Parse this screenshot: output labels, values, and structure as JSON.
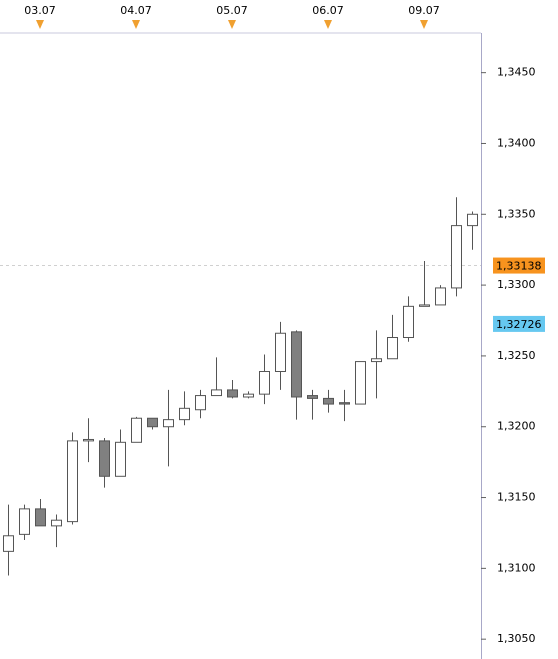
{
  "chart_data": {
    "type": "candlestick",
    "categories": [
      null,
      null,
      "03.07",
      null,
      null,
      null,
      null,
      null,
      "04.07",
      null,
      null,
      null,
      null,
      null,
      "05.07",
      null,
      null,
      null,
      null,
      null,
      "06.07",
      null,
      null,
      null,
      null,
      null,
      "09.07",
      null,
      null,
      null
    ],
    "series": [
      {
        "up_color": "#ffffff",
        "down_color": "#808080",
        "color": "#555555",
        "open": [
          1.3112,
          1.3124,
          1.3142,
          1.313,
          1.3133,
          1.319,
          1.319,
          1.3165,
          1.3189,
          1.3206,
          1.32,
          1.3205,
          1.3212,
          1.3222,
          1.3226,
          1.3221,
          1.3223,
          1.3239,
          1.3267,
          1.3222,
          1.322,
          1.3217,
          1.3216,
          1.3246,
          1.3248,
          1.3263,
          1.3285,
          1.3286,
          1.3298,
          1.3342
        ],
        "high": [
          1.3145,
          1.3145,
          1.3149,
          1.3138,
          1.3196,
          1.3206,
          1.3192,
          1.3198,
          1.3207,
          1.3206,
          1.3226,
          1.3225,
          1.3226,
          1.3249,
          1.3233,
          1.3225,
          1.3251,
          1.3274,
          1.3268,
          1.3226,
          1.3226,
          1.3226,
          1.3246,
          1.3268,
          1.3279,
          1.3292,
          1.3317,
          1.33,
          1.3362,
          1.3352
        ],
        "low": [
          1.3095,
          1.312,
          1.313,
          1.3115,
          1.3131,
          1.3175,
          1.3157,
          1.3165,
          1.3189,
          1.3198,
          1.3172,
          1.3201,
          1.3206,
          1.3222,
          1.322,
          1.322,
          1.3216,
          1.3226,
          1.3205,
          1.3205,
          1.321,
          1.3204,
          1.3216,
          1.322,
          1.3248,
          1.326,
          1.3285,
          1.3286,
          1.3292,
          1.3325
        ],
        "close": [
          1.3123,
          1.3142,
          1.313,
          1.3134,
          1.319,
          1.3191,
          1.3165,
          1.3189,
          1.3206,
          1.32,
          1.3205,
          1.3213,
          1.3222,
          1.3226,
          1.3221,
          1.3223,
          1.3239,
          1.3266,
          1.3221,
          1.322,
          1.3216,
          1.3216,
          1.3246,
          1.3248,
          1.3263,
          1.3285,
          1.3286,
          1.3298,
          1.3342,
          1.335
        ]
      }
    ],
    "ylim": [
      1.3036,
      1.3478
    ],
    "yticks": [
      {
        "value": 1.305,
        "label": "1,3050"
      },
      {
        "value": 1.31,
        "label": "1,3100"
      },
      {
        "value": 1.315,
        "label": "1,3150"
      },
      {
        "value": 1.32,
        "label": "1,3200"
      },
      {
        "value": 1.325,
        "label": "1,3250"
      },
      {
        "value": 1.33,
        "label": "1,3300"
      },
      {
        "value": 1.335,
        "label": "1,3350"
      },
      {
        "value": 1.34,
        "label": "1,3400"
      },
      {
        "value": 1.345,
        "label": "1,3450"
      }
    ],
    "grid": false,
    "price_labels": [
      {
        "value": 1.33138,
        "label": "1,33138",
        "color": "#f7931e",
        "line": true
      },
      {
        "value": 1.32726,
        "label": "1,32726",
        "color": "#66c8f0",
        "line": false
      }
    ]
  }
}
